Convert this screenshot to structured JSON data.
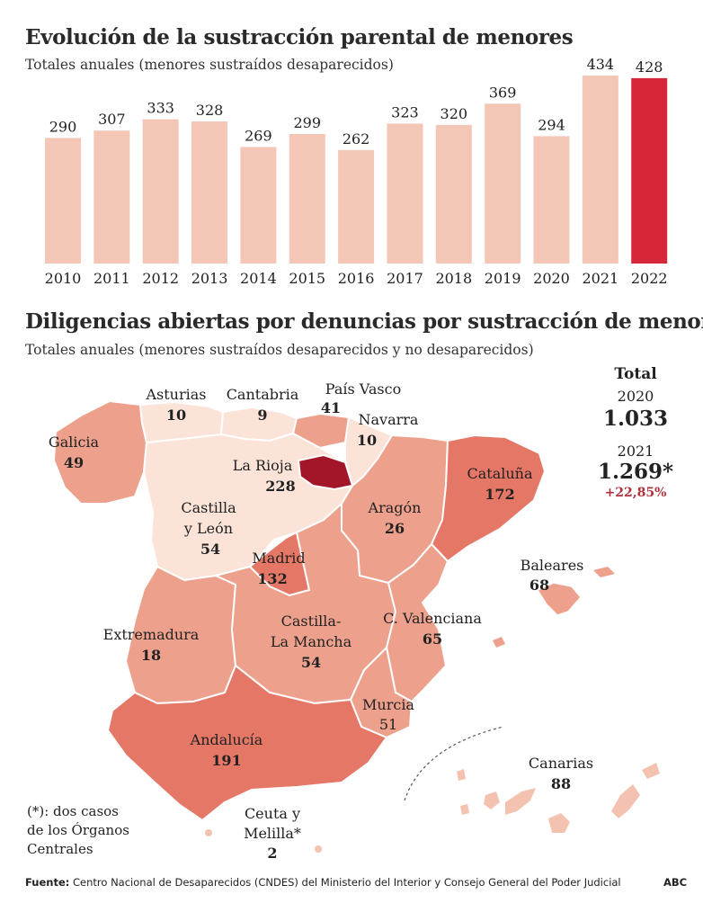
{
  "chart1": {
    "title": "Evolución de la sustracción parental de menores",
    "subtitle": "Totales anuales (menores sustraídos desaparecidos)"
  },
  "chart_data": [
    {
      "type": "bar",
      "title": "Evolución de la sustracción parental de menores",
      "subtitle": "Totales anuales (menores sustraídos desaparecidos)",
      "categories": [
        "2010",
        "2011",
        "2012",
        "2013",
        "2014",
        "2015",
        "2016",
        "2017",
        "2018",
        "2019",
        "2020",
        "2021",
        "2022"
      ],
      "values": [
        290,
        307,
        333,
        328,
        269,
        299,
        262,
        323,
        320,
        369,
        294,
        434,
        428
      ],
      "xlabel": "",
      "ylabel": "",
      "ylim": [
        0,
        434
      ],
      "grid": false,
      "colors": {
        "bar": "#f3c6b6",
        "highlight": "#d7263a"
      },
      "highlight_category": "2022"
    },
    {
      "type": "table",
      "title": "Diligencias abiertas por denuncias por sustracción de menores",
      "subtitle": "Totales anuales (menores sustraídos desaparecidos y no desaparecidos)",
      "regions": [
        {
          "name": "Galicia",
          "value": "49"
        },
        {
          "name": "Asturias",
          "value": "10"
        },
        {
          "name": "Cantabria",
          "value": "9"
        },
        {
          "name": "País Vasco",
          "value": "41"
        },
        {
          "name": "Navarra",
          "value": "10"
        },
        {
          "name": "La Rioja",
          "value": "228"
        },
        {
          "name": "Castilla y León",
          "value": "54"
        },
        {
          "name": "Aragón",
          "value": "26"
        },
        {
          "name": "Cataluña",
          "value": "172"
        },
        {
          "name": "Madrid",
          "value": "132"
        },
        {
          "name": "Baleares",
          "value": "68"
        },
        {
          "name": "Extremadura",
          "value": "18"
        },
        {
          "name": "Castilla-La Mancha",
          "value": "54"
        },
        {
          "name": "C. Valenciana",
          "value": "65"
        },
        {
          "name": "Murcia",
          "value": "51"
        },
        {
          "name": "Andalucía",
          "value": "191"
        },
        {
          "name": "Canarias",
          "value": "88"
        },
        {
          "name": "Ceuta y Melilla*",
          "value": "2"
        }
      ]
    }
  ],
  "chart2": {
    "title": "Diligencias abiertas por denuncias por sustracción de menores",
    "subtitle": "Totales anuales (menores sustraídos desaparecidos y no desaparecidos)"
  },
  "map_labels": {
    "asturias": {
      "name": "Asturias",
      "value": "10"
    },
    "cantabria": {
      "name": "Cantabria",
      "value": "9"
    },
    "pais_vasco": {
      "name": "País Vasco",
      "value": "41"
    },
    "navarra": {
      "name": "Navarra",
      "value": "10"
    },
    "galicia": {
      "name": "Galicia",
      "value": "49"
    },
    "la_rioja": {
      "name": "La Rioja",
      "value": "228"
    },
    "cataluna": {
      "name": "Cataluña",
      "value": "172"
    },
    "castilla_leon": {
      "name1": "Castilla",
      "name2": "y León",
      "value": "54"
    },
    "aragon": {
      "name": "Aragón",
      "value": "26"
    },
    "madrid": {
      "name": "Madrid",
      "value": "132"
    },
    "baleares": {
      "name": "Baleares",
      "value": "68"
    },
    "c_valenciana": {
      "name": "C. Valenciana",
      "value": "65"
    },
    "extremadura": {
      "name": "Extremadura",
      "value": "18"
    },
    "castilla_mancha": {
      "name1": "Castilla-",
      "name2": "La Mancha",
      "value": "54"
    },
    "murcia": {
      "name": "Murcia",
      "value": "51"
    },
    "andalucia": {
      "name": "Andalucía",
      "value": "191"
    },
    "canarias": {
      "name": "Canarias",
      "value": "88"
    },
    "ceuta_melilla": {
      "name1": "Ceuta y",
      "name2": "Melilla*",
      "value": "2"
    }
  },
  "totals": {
    "heading": "Total",
    "year1": "2020",
    "value1": "1.033",
    "year2": "2021",
    "value2": "1.269*",
    "change": "+22,85%"
  },
  "note": {
    "line1": "(*): dos casos",
    "line2": "de los Órganos",
    "line3": "Centrales"
  },
  "footer": {
    "source_label": "Fuente:",
    "source_text": " Centro Nacional de Desaparecidos (CNDES) del Ministerio del Interior y Consejo General del Poder Judicial",
    "brand": "ABC"
  },
  "colors": {
    "shade1": "#fbe3d8",
    "shade2": "#f3c2b0",
    "shade3": "#eda08c",
    "shade4": "#e57766",
    "shade5": "#a3162a",
    "change_red": "#b0303d"
  }
}
